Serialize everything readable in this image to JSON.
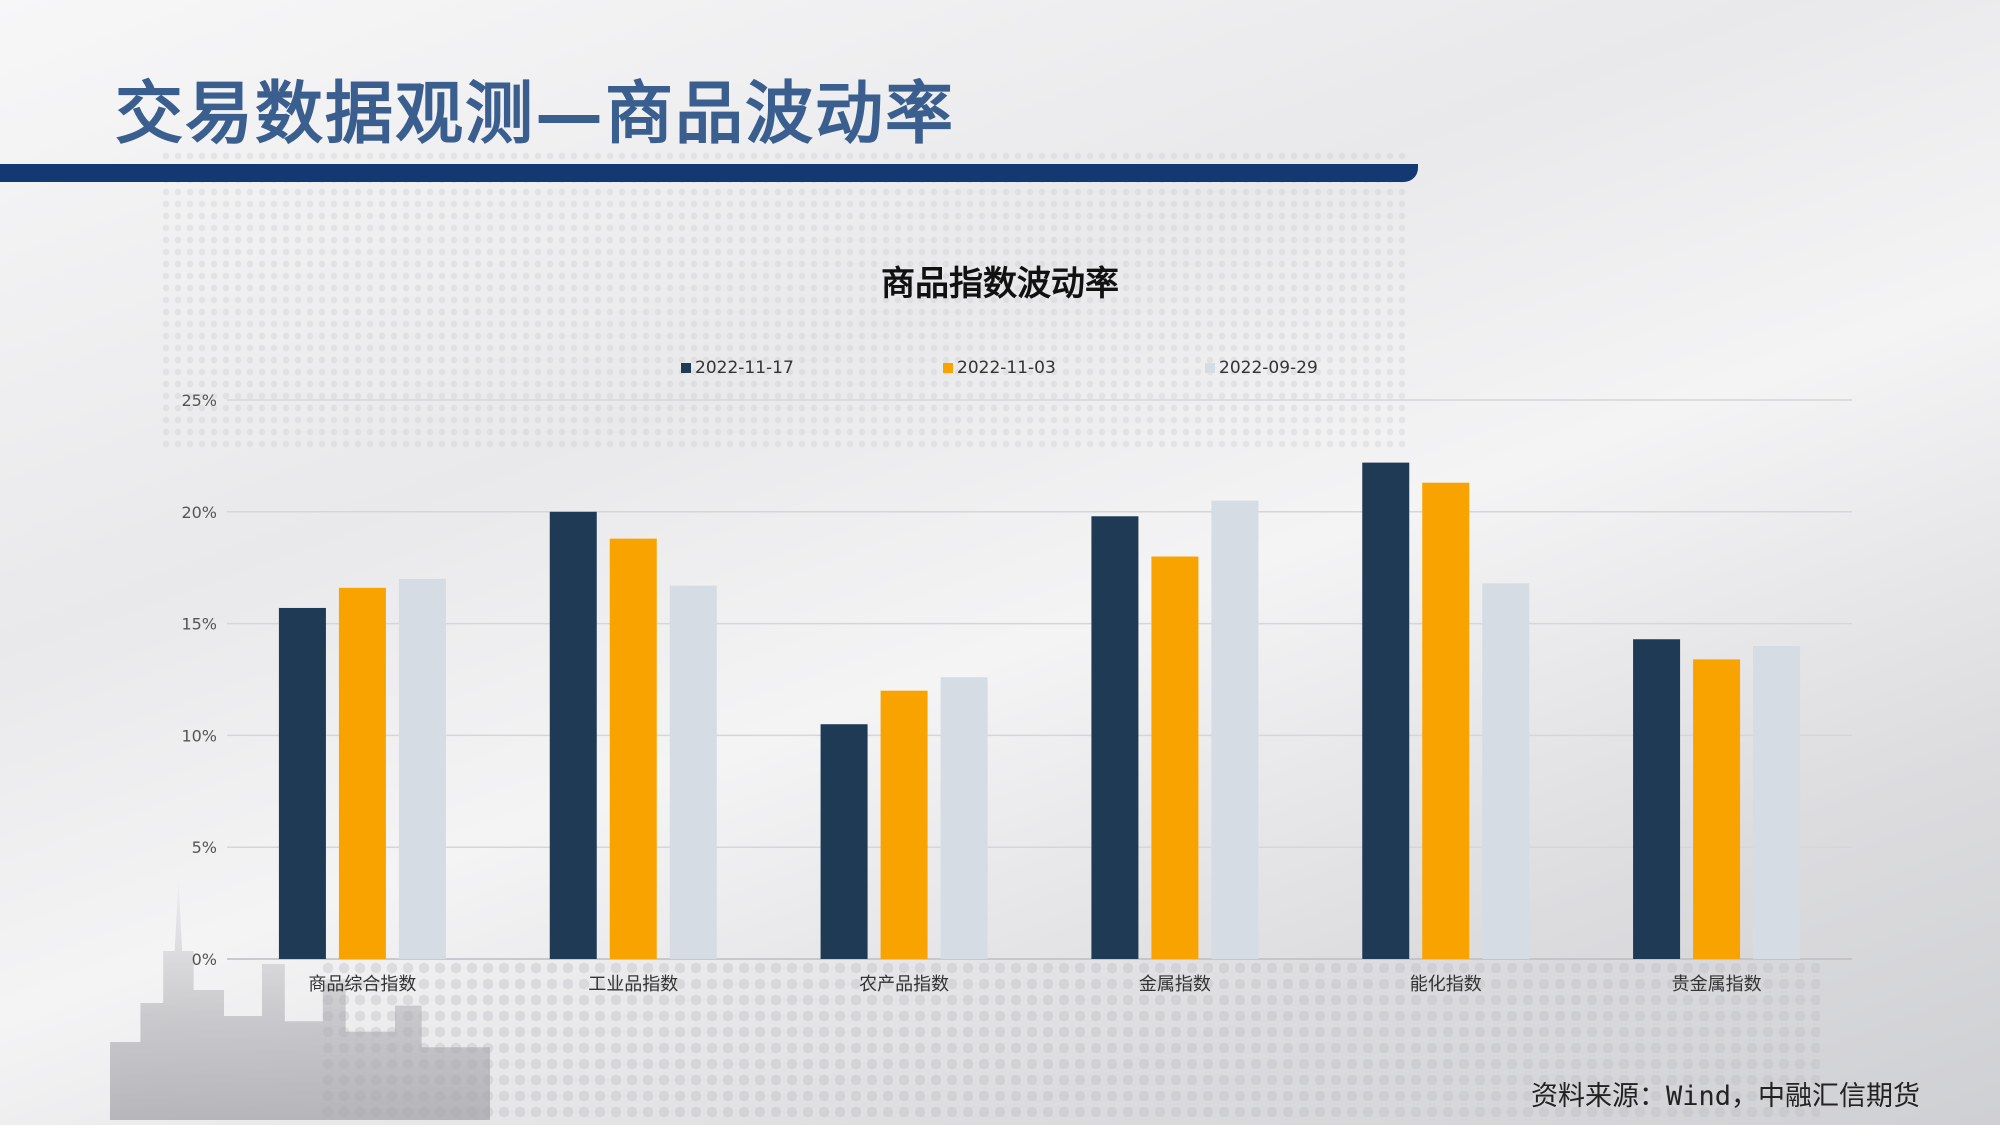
{
  "page": {
    "title": "交易数据观测—商品波动率",
    "source": "资料来源：Wind，中融汇信期货"
  },
  "chart_data": {
    "type": "bar",
    "title": "商品指数波动率",
    "xlabel": "",
    "ylabel": "",
    "ylim": [
      0,
      25
    ],
    "yticks": [
      "0%",
      "5%",
      "10%",
      "15%",
      "20%",
      "25%"
    ],
    "grid": true,
    "legend_position": "top",
    "categories": [
      "商品综合指数",
      "工业品指数",
      "农产品指数",
      "金属指数",
      "能化指数",
      "贵金属指数"
    ],
    "series": [
      {
        "name": "2022-11-17",
        "color": "#1f3a55",
        "values": [
          15.7,
          20.0,
          10.5,
          19.8,
          22.2,
          14.3
        ]
      },
      {
        "name": "2022-11-03",
        "color": "#f8a300",
        "values": [
          16.6,
          18.8,
          12.0,
          18.0,
          21.3,
          13.4
        ]
      },
      {
        "name": "2022-09-29",
        "color": "#d5dce4",
        "values": [
          17.0,
          16.7,
          12.6,
          20.5,
          16.8,
          14.0
        ]
      }
    ]
  }
}
